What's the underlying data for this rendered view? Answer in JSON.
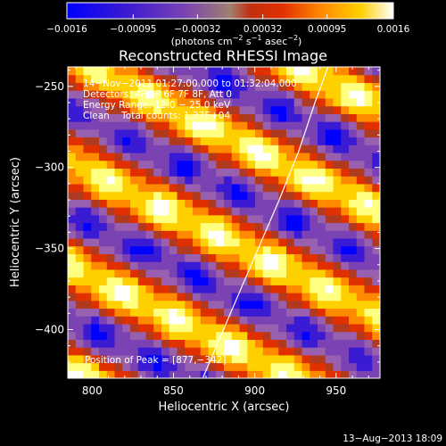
{
  "chart_data": {
    "type": "heatmap",
    "title": "Reconstructed RHESSI Image",
    "xlabel": "Heliocentric X (arcsec)",
    "ylabel": "Heliocentric Y (arcsec)",
    "xlim": [
      785,
      977
    ],
    "ylim": [
      -430,
      -238
    ],
    "x_ticks": [
      800,
      850,
      900,
      950
    ],
    "y_ticks": [
      -250,
      -300,
      -350,
      -400
    ],
    "x_tick_labels": [
      "800",
      "850",
      "900",
      "950"
    ],
    "y_tick_labels": [
      "−250",
      "−300",
      "−350",
      "−400"
    ],
    "colorbar": {
      "ticks": [
        -0.0016,
        -0.00095,
        -0.00032,
        0.00032,
        0.00095,
        0.0016
      ],
      "tick_labels": [
        "−0.0016",
        "−0.00095",
        "−0.00032",
        "0.00032",
        "0.00095",
        "0.0016"
      ],
      "units_text": "(photons cm",
      "units_exp1": "−2",
      "units_mid": " s",
      "units_exp2": "−1",
      "units_mid2": " asec",
      "units_exp3": "−2",
      "units_end": ")",
      "colormap": [
        "#0000ff",
        "#3a1ad2",
        "#7a42b2",
        "#9a60b0",
        "#b03a20",
        "#e03000",
        "#ff8a00",
        "#ffd000",
        "#ffff80",
        "#ffffff"
      ]
    },
    "info_lines": [
      "14−Nov−2011 01:27:00.000 to 01:32:04.000",
      "Detectors: 4F 5F 6F 7F 8F, Att 0",
      "Energy Range: 12.0 − 25.0 keV",
      "Clean    Total counts: 1.37E+04"
    ],
    "peak_label": "Position of Peak = [877,−342]",
    "peak": [
      877,
      -342
    ],
    "limb_curve": [
      [
        868,
        -430
      ],
      [
        885,
        -390
      ],
      [
        900,
        -355
      ],
      [
        915,
        -320
      ],
      [
        927,
        -290
      ],
      [
        937,
        -260
      ],
      [
        945,
        -238
      ]
    ],
    "footer_timestamp": "13−Aug−2013 18:09"
  }
}
